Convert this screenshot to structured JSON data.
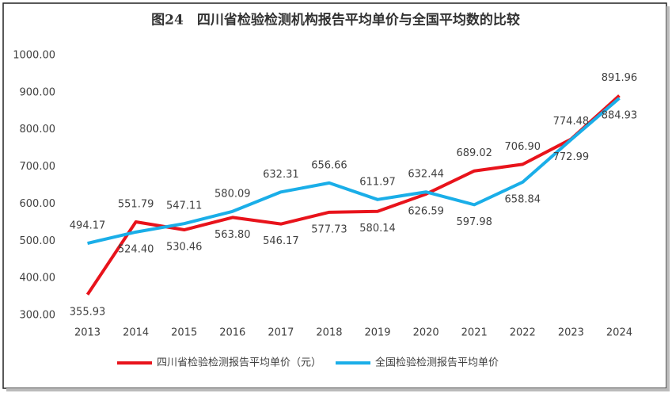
{
  "chart_data": {
    "type": "line",
    "title": "图24　四川省检验检测机构报告平均单价与全国平均数的比较",
    "categories": [
      "2013",
      "2014",
      "2015",
      "2016",
      "2017",
      "2018",
      "2019",
      "2020",
      "2021",
      "2022",
      "2023",
      "2024"
    ],
    "series": [
      {
        "name": "四川省检验检测报告平均单价（元）",
        "color": "#e8131b",
        "values": [
          355.93,
          551.79,
          530.46,
          563.8,
          546.17,
          577.73,
          580.14,
          626.59,
          689.02,
          706.9,
          774.48,
          891.96
        ],
        "value_labels": [
          "355.93",
          "551.79",
          "530.46",
          "563.80",
          "546.17",
          "577.73",
          "580.14",
          "626.59",
          "689.02",
          "706.90",
          "774.48",
          "891.96"
        ]
      },
      {
        "name": "全国检验检测报告平均单价",
        "color": "#1aaee8",
        "values": [
          494.17,
          524.4,
          547.11,
          580.09,
          632.31,
          656.66,
          611.97,
          632.44,
          597.98,
          658.84,
          772.99,
          884.93
        ],
        "value_labels": [
          "494.17",
          "524.40",
          "547.11",
          "580.09",
          "632.31",
          "656.66",
          "611.97",
          "632.44",
          "597.98",
          "658.84",
          "772.99",
          "884.93"
        ]
      }
    ],
    "ylim": [
      300,
      1000
    ],
    "yticks": [
      {
        "value": 300,
        "label": "300.00"
      },
      {
        "value": 400,
        "label": "400.00"
      },
      {
        "value": 500,
        "label": "500.00"
      },
      {
        "value": 600,
        "label": "600.00"
      },
      {
        "value": 700,
        "label": "700.00"
      },
      {
        "value": 800,
        "label": "800.00"
      },
      {
        "value": 900,
        "label": "900.00"
      },
      {
        "value": 1000,
        "label": "1000.00"
      }
    ],
    "grid": false,
    "legend": "bottom"
  }
}
